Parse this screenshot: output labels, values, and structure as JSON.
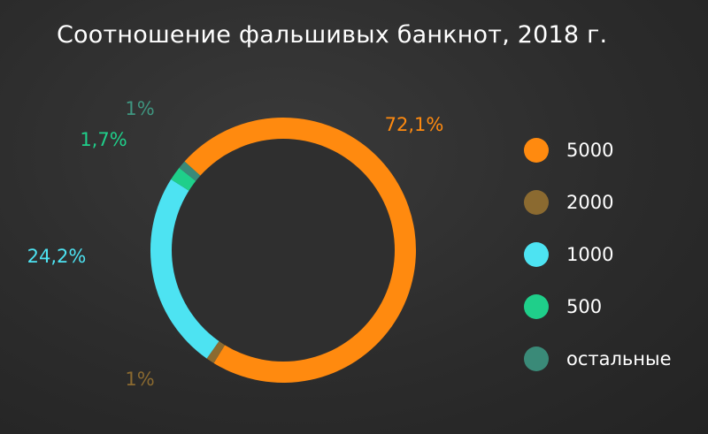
{
  "chart_data": {
    "type": "pie",
    "title": "Соотношение фальшивых банкнот, 2018 г.",
    "series": [
      {
        "name": "5000",
        "value": 72.1,
        "label": "72,1%",
        "color": "#ff8a0f"
      },
      {
        "name": "2000",
        "value": 1,
        "label": "1%",
        "color": "#8b6a30"
      },
      {
        "name": "1000",
        "value": 24.2,
        "label": "24,2%",
        "color": "#4de3f2"
      },
      {
        "name": "500",
        "value": 1.7,
        "label": "1,7%",
        "color": "#1fcf8a"
      },
      {
        "name": "остальные",
        "value": 1,
        "label": "1%",
        "color": "#3a8a78"
      }
    ],
    "donut": true,
    "legend_position": "right"
  }
}
